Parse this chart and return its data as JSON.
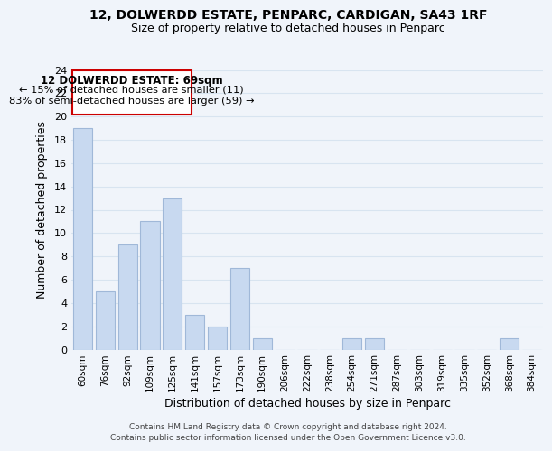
{
  "title_line1": "12, DOLWERDD ESTATE, PENPARC, CARDIGAN, SA43 1RF",
  "title_line2": "Size of property relative to detached houses in Penparc",
  "xlabel": "Distribution of detached houses by size in Penparc",
  "ylabel": "Number of detached properties",
  "bin_labels": [
    "60sqm",
    "76sqm",
    "92sqm",
    "109sqm",
    "125sqm",
    "141sqm",
    "157sqm",
    "173sqm",
    "190sqm",
    "206sqm",
    "222sqm",
    "238sqm",
    "254sqm",
    "271sqm",
    "287sqm",
    "303sqm",
    "319sqm",
    "335sqm",
    "352sqm",
    "368sqm",
    "384sqm"
  ],
  "bar_heights": [
    19,
    5,
    9,
    11,
    13,
    3,
    2,
    7,
    1,
    0,
    0,
    0,
    1,
    1,
    0,
    0,
    0,
    0,
    0,
    1,
    0
  ],
  "bar_color": "#c8d9f0",
  "bar_edge_color": "#a0b8d8",
  "annotation_title": "12 DOLWERDD ESTATE: 69sqm",
  "annotation_line2": "← 15% of detached houses are smaller (11)",
  "annotation_line3": "83% of semi-detached houses are larger (59) →",
  "annotation_box_color": "#ffffff",
  "annotation_box_edge": "#cc0000",
  "ylim": [
    0,
    24
  ],
  "yticks": [
    0,
    2,
    4,
    6,
    8,
    10,
    12,
    14,
    16,
    18,
    20,
    22,
    24
  ],
  "footer_line1": "Contains HM Land Registry data © Crown copyright and database right 2024.",
  "footer_line2": "Contains public sector information licensed under the Open Government Licence v3.0.",
  "grid_color": "#d8e4f0",
  "background_color": "#f0f4fa"
}
